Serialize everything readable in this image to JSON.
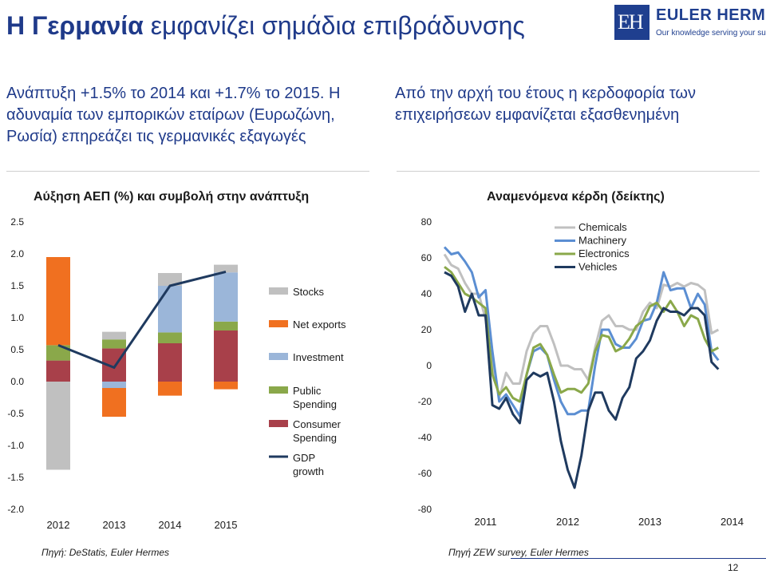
{
  "header": {
    "title_bold": "Η Γερμανία",
    "title_rest": " εμφανίζει σημάδια επιβράδυνσης"
  },
  "logo": {
    "name": "EULER HERMES",
    "tagline": "Our knowledge serving your success",
    "mark": "EH"
  },
  "left_text": "Ανάπτυξη +1.5% το 2014 και +1.7% το 2015. Η αδυναμία των εμπορικών εταίρων (Ευρωζώνη, Ρωσία) επηρεάζει τις γερμανικές εξαγωγές",
  "right_text": "Από την αρχή του έτους η κερδοφορία των επιχειρήσεων εμφανίζεται εξασθενημένη",
  "left_source": "Πηγή: DeStatis, Euler Hermes",
  "right_source": "Πηγή ZEW survey, Euler Hermes",
  "page_number": "12",
  "chart_data": [
    {
      "type": "bar",
      "stacked": true,
      "title": "Αύξηση ΑΕΠ (%) και συμβολή στην ανάπτυξη",
      "categories": [
        "2012",
        "2013",
        "2014",
        "2015"
      ],
      "ylim": [
        -2.0,
        2.5
      ],
      "yticks": [
        "2.5",
        "2.0",
        "1.5",
        "1.0",
        "0.5",
        "0.0",
        "-0.5",
        "-1.0",
        "-1.5",
        "-2.0"
      ],
      "series": [
        {
          "name": "Stocks",
          "color": "#c0c0c0",
          "values": [
            -1.38,
            0.12,
            0.2,
            0.12
          ]
        },
        {
          "name": "Net exports",
          "color": "#f07020",
          "values": [
            1.38,
            -0.45,
            -0.22,
            -0.12
          ]
        },
        {
          "name": "Investment",
          "color": "#9bb6d9",
          "values": [
            0.0,
            -0.1,
            0.73,
            0.77
          ]
        },
        {
          "name": "Public Spending",
          "color": "#8aa84a",
          "values": [
            0.24,
            0.14,
            0.17,
            0.14
          ]
        },
        {
          "name": "Consumer Spending",
          "color": "#a8404a",
          "values": [
            0.33,
            0.52,
            0.6,
            0.8
          ]
        }
      ],
      "line": {
        "name": "GDP growth",
        "color": "#1f3a5f",
        "values": [
          0.57,
          0.22,
          1.5,
          1.72
        ]
      },
      "legend": [
        "Stocks",
        "Net exports",
        "Investment",
        "Public Spending",
        "Consumer Spending",
        "GDP growth"
      ]
    },
    {
      "type": "line",
      "title": "Αναμενόμενα κέρδη (δείκτης)",
      "x_start": 2011.0,
      "x_step": 0.0833333,
      "xticks": [
        "2011",
        "2012",
        "2013",
        "2014"
      ],
      "ylim": [
        -80,
        80
      ],
      "yticks": [
        "80",
        "60",
        "40",
        "20",
        "0",
        "-20",
        "-40",
        "-60",
        "-80"
      ],
      "legend_placement": "top-right",
      "series": [
        {
          "name": "Chemicals",
          "color": "#c0c0c0",
          "values": [
            62,
            56,
            54,
            46,
            40,
            40,
            26,
            0,
            -18,
            -4,
            -10,
            -10,
            8,
            18,
            22,
            22,
            12,
            0,
            0,
            -2,
            -2,
            -8,
            10,
            25,
            28,
            22,
            22,
            20,
            20,
            30,
            35,
            32,
            45,
            44,
            46,
            44,
            46,
            45,
            42,
            18,
            20
          ]
        },
        {
          "name": "Machinery",
          "color": "#5b8ed2",
          "values": [
            66,
            62,
            63,
            58,
            52,
            38,
            42,
            8,
            -20,
            -16,
            -22,
            -28,
            -5,
            8,
            10,
            6,
            -8,
            -20,
            -27,
            -27,
            -25,
            -25,
            0,
            20,
            20,
            12,
            10,
            10,
            15,
            25,
            26,
            35,
            52,
            42,
            43,
            43,
            32,
            40,
            34,
            8,
            3
          ]
        },
        {
          "name": "Electronics",
          "color": "#8aa84a",
          "values": [
            55,
            52,
            46,
            40,
            38,
            35,
            32,
            -5,
            -16,
            -12,
            -18,
            -20,
            -5,
            10,
            12,
            6,
            -5,
            -15,
            -13,
            -13,
            -15,
            -10,
            8,
            17,
            16,
            8,
            10,
            15,
            22,
            25,
            33,
            35,
            30,
            36,
            30,
            22,
            28,
            26,
            15,
            8,
            10
          ]
        },
        {
          "name": "Vehicles",
          "color": "#1f3a5f",
          "values": [
            52,
            50,
            44,
            30,
            40,
            28,
            28,
            -22,
            -24,
            -18,
            -27,
            -32,
            -8,
            -4,
            -6,
            -4,
            -20,
            -42,
            -58,
            -68,
            -50,
            -25,
            -15,
            -15,
            -25,
            -30,
            -18,
            -12,
            4,
            8,
            14,
            25,
            32,
            30,
            30,
            28,
            32,
            32,
            28,
            2,
            -2
          ]
        }
      ]
    }
  ]
}
